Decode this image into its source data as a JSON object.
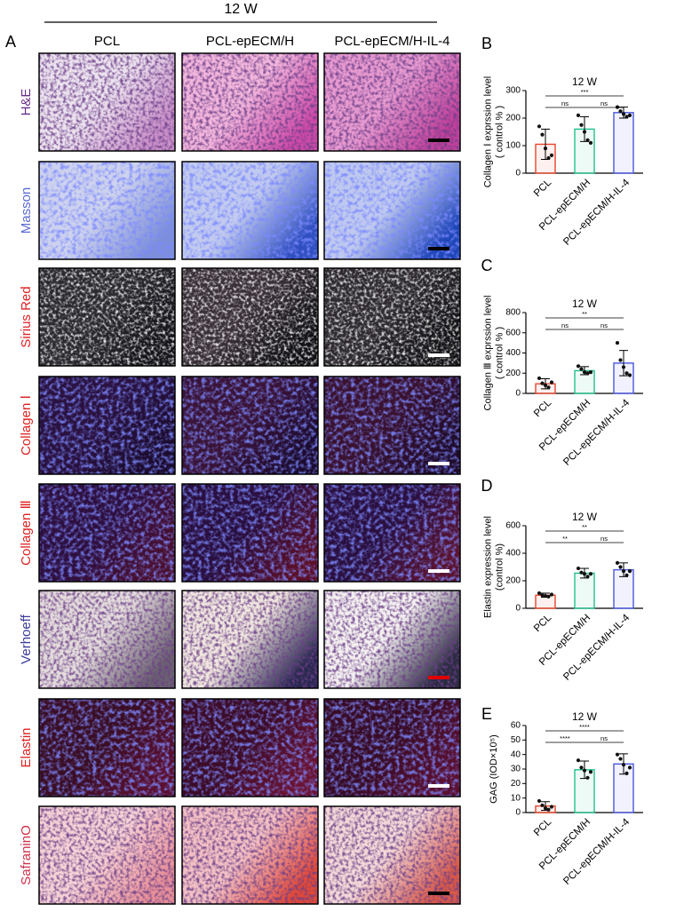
{
  "figure": {
    "title": "12 W",
    "panel": "A",
    "columns": [
      "PCL",
      "PCL-epECM/H",
      "PCL-epECM/H-IL-4"
    ],
    "rows": [
      "H&E",
      "Masson",
      "Sirius Red",
      "Collagen Ⅰ",
      "Collagen Ⅲ",
      "Verhoeff",
      "Elastin",
      "SafraninO"
    ]
  },
  "chart_data": [
    {
      "type": "bar",
      "panel": "B",
      "title": "12 W",
      "ylabel": [
        "Collagen Ⅰ exprssion level",
        "( control % )"
      ],
      "categories": [
        "PCL",
        "PCL-epECM/H",
        "PCL-epECM/H-IL-4"
      ],
      "colors": [
        "#e8452c",
        "#20c090",
        "#4a55e0"
      ],
      "values": [
        105,
        160,
        220
      ],
      "errors": [
        55,
        45,
        20
      ],
      "points": [
        [
          170,
          140,
          90,
          55,
          65
        ],
        [
          210,
          175,
          150,
          120,
          110
        ],
        [
          240,
          225,
          215,
          205,
          210
        ]
      ],
      "ylim": [
        0,
        300
      ],
      "yticks": [
        0,
        100,
        200,
        300
      ],
      "comparisons": [
        {
          "pair": [
            0,
            2
          ],
          "label": "***"
        },
        {
          "pair": [
            0,
            1
          ],
          "label": "ns"
        },
        {
          "pair": [
            1,
            2
          ],
          "label": "ns"
        }
      ]
    },
    {
      "type": "bar",
      "panel": "C",
      "title": "12 W",
      "ylabel": [
        "Collagen Ⅲ exprssion level",
        "( control % )"
      ],
      "categories": [
        "PCL",
        "PCL-epECM/H",
        "PCL-epECM/H-IL-4"
      ],
      "colors": [
        "#e8452c",
        "#20c090",
        "#4a55e0"
      ],
      "values": [
        95,
        225,
        300
      ],
      "errors": [
        50,
        40,
        125
      ],
      "points": [
        [
          150,
          100,
          80,
          60,
          110
        ],
        [
          270,
          240,
          210,
          200,
          210
        ],
        [
          500,
          330,
          260,
          200,
          180
        ]
      ],
      "ylim": [
        0,
        800
      ],
      "yticks": [
        0,
        200,
        400,
        600,
        800
      ],
      "comparisons": [
        {
          "pair": [
            0,
            2
          ],
          "label": "**"
        },
        {
          "pair": [
            0,
            1
          ],
          "label": "ns"
        },
        {
          "pair": [
            1,
            2
          ],
          "label": "ns"
        }
      ]
    },
    {
      "type": "bar",
      "panel": "D",
      "title": "12 W",
      "ylabel": [
        "Elastin expression level",
        "(control %)"
      ],
      "categories": [
        "PCL",
        "PCL-epECM/H",
        "PCL-epECM/H-IL-4"
      ],
      "colors": [
        "#e8452c",
        "#20c090",
        "#4a55e0"
      ],
      "values": [
        95,
        255,
        280
      ],
      "errors": [
        15,
        35,
        50
      ],
      "points": [
        [
          110,
          95,
          90,
          85,
          100
        ],
        [
          290,
          260,
          250,
          230,
          250
        ],
        [
          330,
          300,
          270,
          240,
          270
        ]
      ],
      "ylim": [
        0,
        600
      ],
      "yticks": [
        0,
        200,
        400,
        600
      ],
      "comparisons": [
        {
          "pair": [
            0,
            2
          ],
          "label": "**"
        },
        {
          "pair": [
            0,
            1
          ],
          "label": "**"
        },
        {
          "pair": [
            1,
            2
          ],
          "label": "ns"
        }
      ]
    },
    {
      "type": "bar",
      "panel": "E",
      "title": "12 W",
      "ylabel": [
        "GAG (IOD×10⁵)"
      ],
      "categories": [
        "PCL",
        "PCL-epECM/H",
        "PCL-epECM/H-IL-4"
      ],
      "colors": [
        "#e8452c",
        "#20c090",
        "#4a55e0"
      ],
      "values": [
        4.5,
        29.5,
        33.5
      ],
      "errors": [
        3,
        6,
        7
      ],
      "points": [
        [
          8,
          5,
          3,
          2,
          4
        ],
        [
          36,
          31,
          29,
          24,
          28
        ],
        [
          40,
          37,
          33,
          27,
          31
        ]
      ],
      "ylim": [
        0,
        60
      ],
      "yticks": [
        0,
        10,
        20,
        30,
        40,
        50,
        60
      ],
      "comparisons": [
        {
          "pair": [
            0,
            2
          ],
          "label": "****"
        },
        {
          "pair": [
            0,
            1
          ],
          "label": "****"
        },
        {
          "pair": [
            1,
            2
          ],
          "label": "ns"
        }
      ]
    }
  ]
}
